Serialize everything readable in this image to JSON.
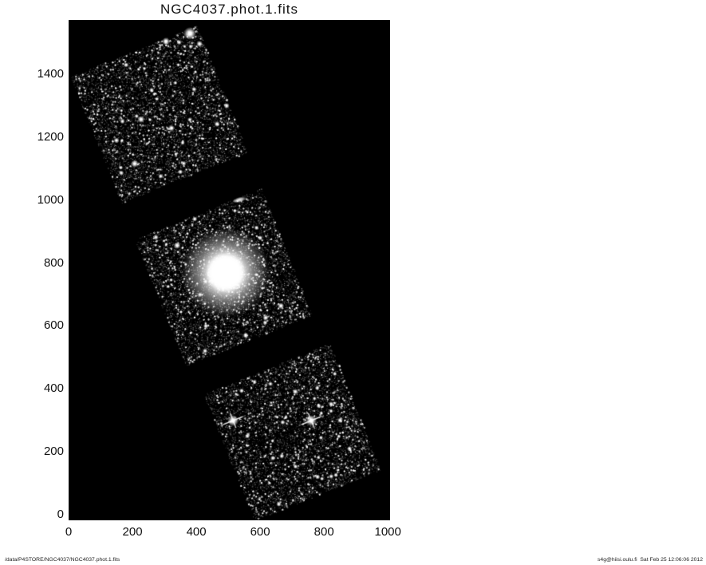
{
  "figure": {
    "title": "NGC4037.phot.1.fits",
    "footer_left": "/data/P4STORE/NGC4037/NGC4037.phot.1.fits",
    "footer_right": "s4g@hiisi.oulu.fi  Sat Feb 25 12:06:06 2012"
  },
  "chart_data": {
    "type": "heatmap",
    "title": "NGC4037.phot.1.fits",
    "xlabel": "",
    "ylabel": "",
    "x_ticks": [
      0,
      200,
      400,
      600,
      800,
      1000
    ],
    "y_ticks": [
      0,
      200,
      400,
      600,
      800,
      1000,
      1200,
      1400
    ],
    "xlim": [
      0,
      1007
    ],
    "ylim": [
      -18,
      1573
    ],
    "grid": false,
    "legend": false,
    "plot_background": "#000000",
    "colormap": "grayscale",
    "description": "Grayscale FITS mosaic of NGC 4037: three square detector tiles rotated ~-22 deg arranged diagonally from upper-left to lower-right on a black background; the middle tile contains the bright diffuse galaxy NGC 4037.",
    "mosaic_tiles": [
      {
        "name": "ccd-tile-north",
        "center": [
          283,
          1273
        ],
        "size": 420,
        "rotation_deg": -22,
        "stars": [
          [
            380,
            1530,
            20
          ],
          [
            305,
            1505,
            12
          ],
          [
            410,
            1497,
            10
          ],
          [
            227,
            1257,
            11
          ],
          [
            322,
            1229,
            10
          ],
          [
            465,
            1242,
            9
          ],
          [
            495,
            1300,
            9
          ],
          [
            207,
            1116,
            12
          ],
          [
            150,
            1190,
            9
          ],
          [
            350,
            1090,
            8
          ],
          [
            260,
            1350,
            8
          ],
          [
            180,
            1430,
            8
          ]
        ]
      },
      {
        "name": "ccd-tile-center",
        "center": [
          485,
          755
        ],
        "size": 420,
        "rotation_deg": -22,
        "galaxy": {
          "center": [
            492,
            770
          ],
          "core_radius": 45,
          "halo_radius": 140
        },
        "companion_galaxy": {
          "center": [
            535,
            1001
          ],
          "angle_deg": -15
        },
        "stars": [
          [
            340,
            856,
            11
          ],
          [
            665,
            664,
            10
          ],
          [
            617,
            626,
            9
          ],
          [
            395,
            940,
            8
          ],
          [
            600,
            880,
            8
          ],
          [
            430,
            600,
            8
          ],
          [
            555,
            570,
            9
          ]
        ]
      },
      {
        "name": "ccd-tile-south",
        "center": [
          700,
          262
        ],
        "size": 420,
        "rotation_deg": -22,
        "diffraction_stars": [
          [
            515,
            299
          ],
          [
            760,
            299
          ]
        ],
        "seam_offsets": [
          -0.02,
          -0.36
        ],
        "stars": [
          [
            710,
            391,
            9
          ],
          [
            850,
            300,
            8
          ],
          [
            640,
            180,
            8
          ],
          [
            780,
            120,
            8
          ],
          [
            880,
            210,
            8
          ],
          [
            560,
            250,
            8
          ]
        ]
      }
    ]
  }
}
